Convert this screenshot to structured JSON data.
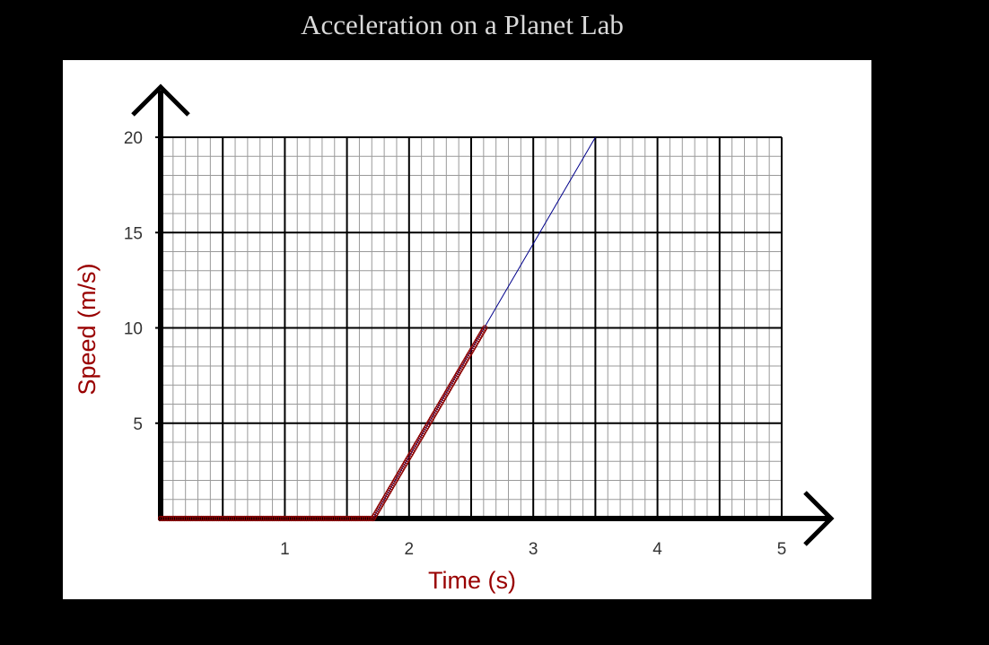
{
  "header": {
    "title": "Acceleration on a Planet Lab"
  },
  "colors": {
    "background": "#000000",
    "panel": "#ffffff",
    "axis_title": "#990000",
    "data_marker": "#8b0000",
    "fit_line": "#00008b",
    "grid_major": "#000000",
    "grid_minor": "#9a9a9a"
  },
  "chart_data": {
    "type": "scatter",
    "title": "",
    "xlabel": "Time (s)",
    "ylabel": "Speed (m/s)",
    "xlim": [
      0,
      5
    ],
    "ylim": [
      0,
      20
    ],
    "x_ticks": [
      1,
      2,
      3,
      4,
      5
    ],
    "y_ticks": [
      5,
      10,
      15,
      20
    ],
    "grid": true,
    "series": [
      {
        "kind": "markers",
        "segments": [
          {
            "x_start": 0,
            "x_end": 1.71,
            "y_start": 0,
            "y_end": 0
          },
          {
            "x_start": 1.71,
            "x_end": 2.61,
            "y_start": 0,
            "y_end": 10.0
          }
        ]
      },
      {
        "kind": "line",
        "points": [
          [
            1.71,
            0
          ],
          [
            3.5,
            20
          ]
        ]
      }
    ]
  }
}
